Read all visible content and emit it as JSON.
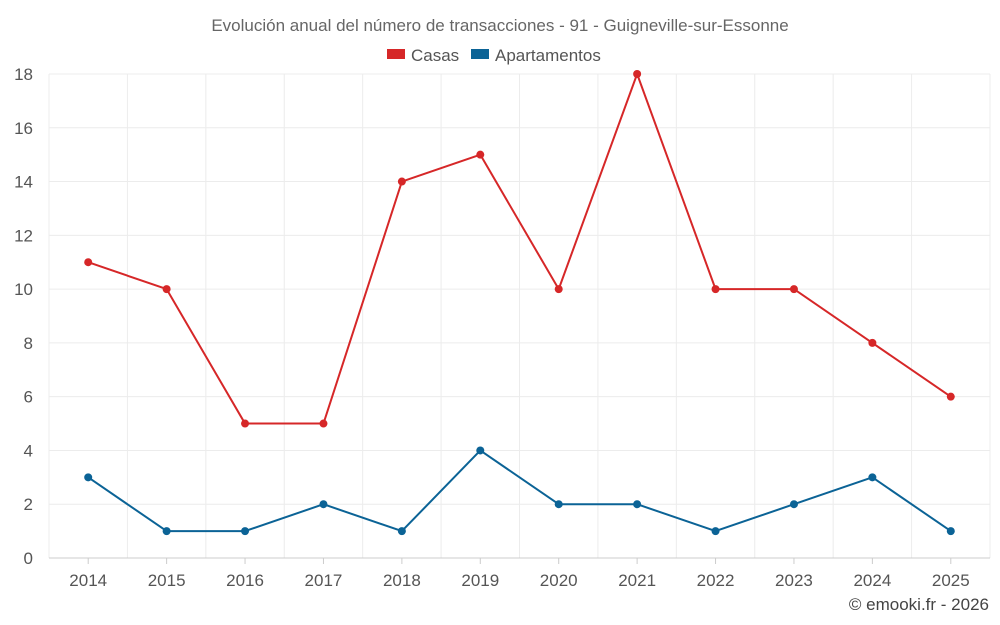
{
  "chart_data": {
    "type": "line",
    "title": "Evolución anual del número de transacciones - 91 - Guigneville-sur-Essonne",
    "categories": [
      "2014",
      "2015",
      "2016",
      "2017",
      "2018",
      "2019",
      "2020",
      "2021",
      "2022",
      "2023",
      "2024",
      "2025"
    ],
    "series": [
      {
        "name": "Casas",
        "color": "#d62728",
        "values": [
          11,
          10,
          5,
          5,
          14,
          15,
          10,
          18,
          10,
          10,
          8,
          6
        ]
      },
      {
        "name": "Apartamentos",
        "color": "#0b6396",
        "values": [
          3,
          1,
          1,
          2,
          1,
          4,
          2,
          2,
          1,
          2,
          3,
          1
        ]
      }
    ],
    "ylim": [
      0,
      18
    ],
    "yticks": [
      0,
      2,
      4,
      6,
      8,
      10,
      12,
      14,
      16,
      18
    ],
    "xlabel": "",
    "ylabel": "",
    "grid": true,
    "legend_position": "top-center"
  },
  "credit": "© emooki.fr - 2026"
}
